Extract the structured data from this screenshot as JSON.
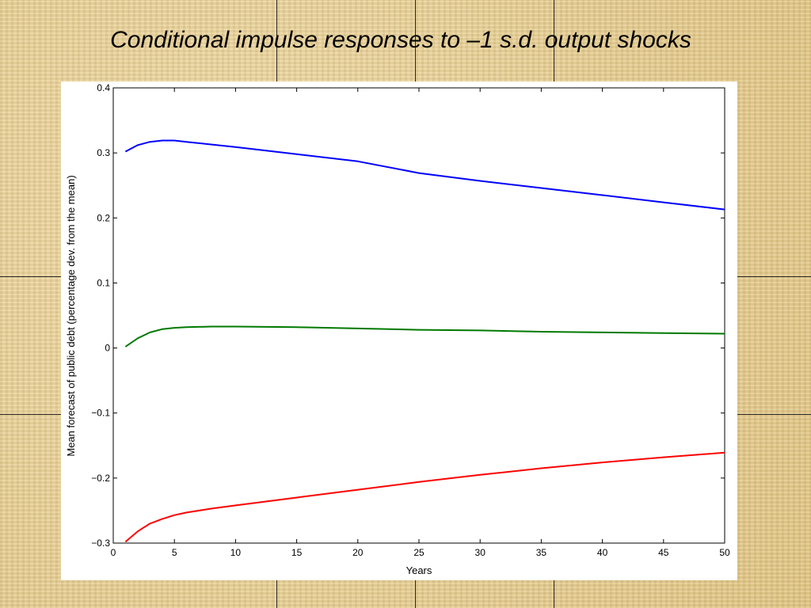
{
  "slide": {
    "title": "Conditional impulse responses to –1 s.d. output shocks"
  },
  "chart_data": {
    "type": "line",
    "title": "",
    "xlabel": "Years",
    "ylabel": "Mean forecast of public debt (percentage dev. from the mean)",
    "xlim": [
      0,
      50
    ],
    "ylim": [
      -0.3,
      0.4
    ],
    "x_ticks": [
      0,
      5,
      10,
      15,
      20,
      25,
      30,
      35,
      40,
      45,
      50
    ],
    "x_tick_labels": [
      "0",
      "5",
      "10",
      "15",
      "20",
      "25",
      "30",
      "35",
      "40",
      "45",
      "50"
    ],
    "y_ticks": [
      -0.3,
      -0.2,
      -0.1,
      0,
      0.1,
      0.2,
      0.3,
      0.4
    ],
    "y_tick_labels": [
      "−0.3",
      "−0.2",
      "−0.1",
      "0",
      "0.1",
      "0.2",
      "0.3",
      "0.4"
    ],
    "grid": false,
    "legend": "none",
    "x": [
      1,
      2,
      3,
      4,
      5,
      6,
      8,
      10,
      15,
      20,
      25,
      30,
      35,
      40,
      45,
      50
    ],
    "series": [
      {
        "color": "#0000ff",
        "values": [
          0.302,
          0.312,
          0.317,
          0.319,
          0.319,
          0.317,
          0.313,
          0.309,
          0.298,
          0.287,
          0.269,
          0.257,
          0.246,
          0.235,
          0.224,
          0.213
        ]
      },
      {
        "color": "#007a00",
        "values": [
          0.002,
          0.015,
          0.024,
          0.029,
          0.031,
          0.032,
          0.033,
          0.033,
          0.032,
          0.03,
          0.028,
          0.027,
          0.025,
          0.024,
          0.023,
          0.022
        ]
      },
      {
        "color": "#ff0000",
        "values": [
          -0.298,
          -0.282,
          -0.27,
          -0.263,
          -0.257,
          -0.253,
          -0.247,
          -0.242,
          -0.23,
          -0.218,
          -0.206,
          -0.195,
          -0.185,
          -0.176,
          -0.168,
          -0.161
        ]
      }
    ]
  }
}
